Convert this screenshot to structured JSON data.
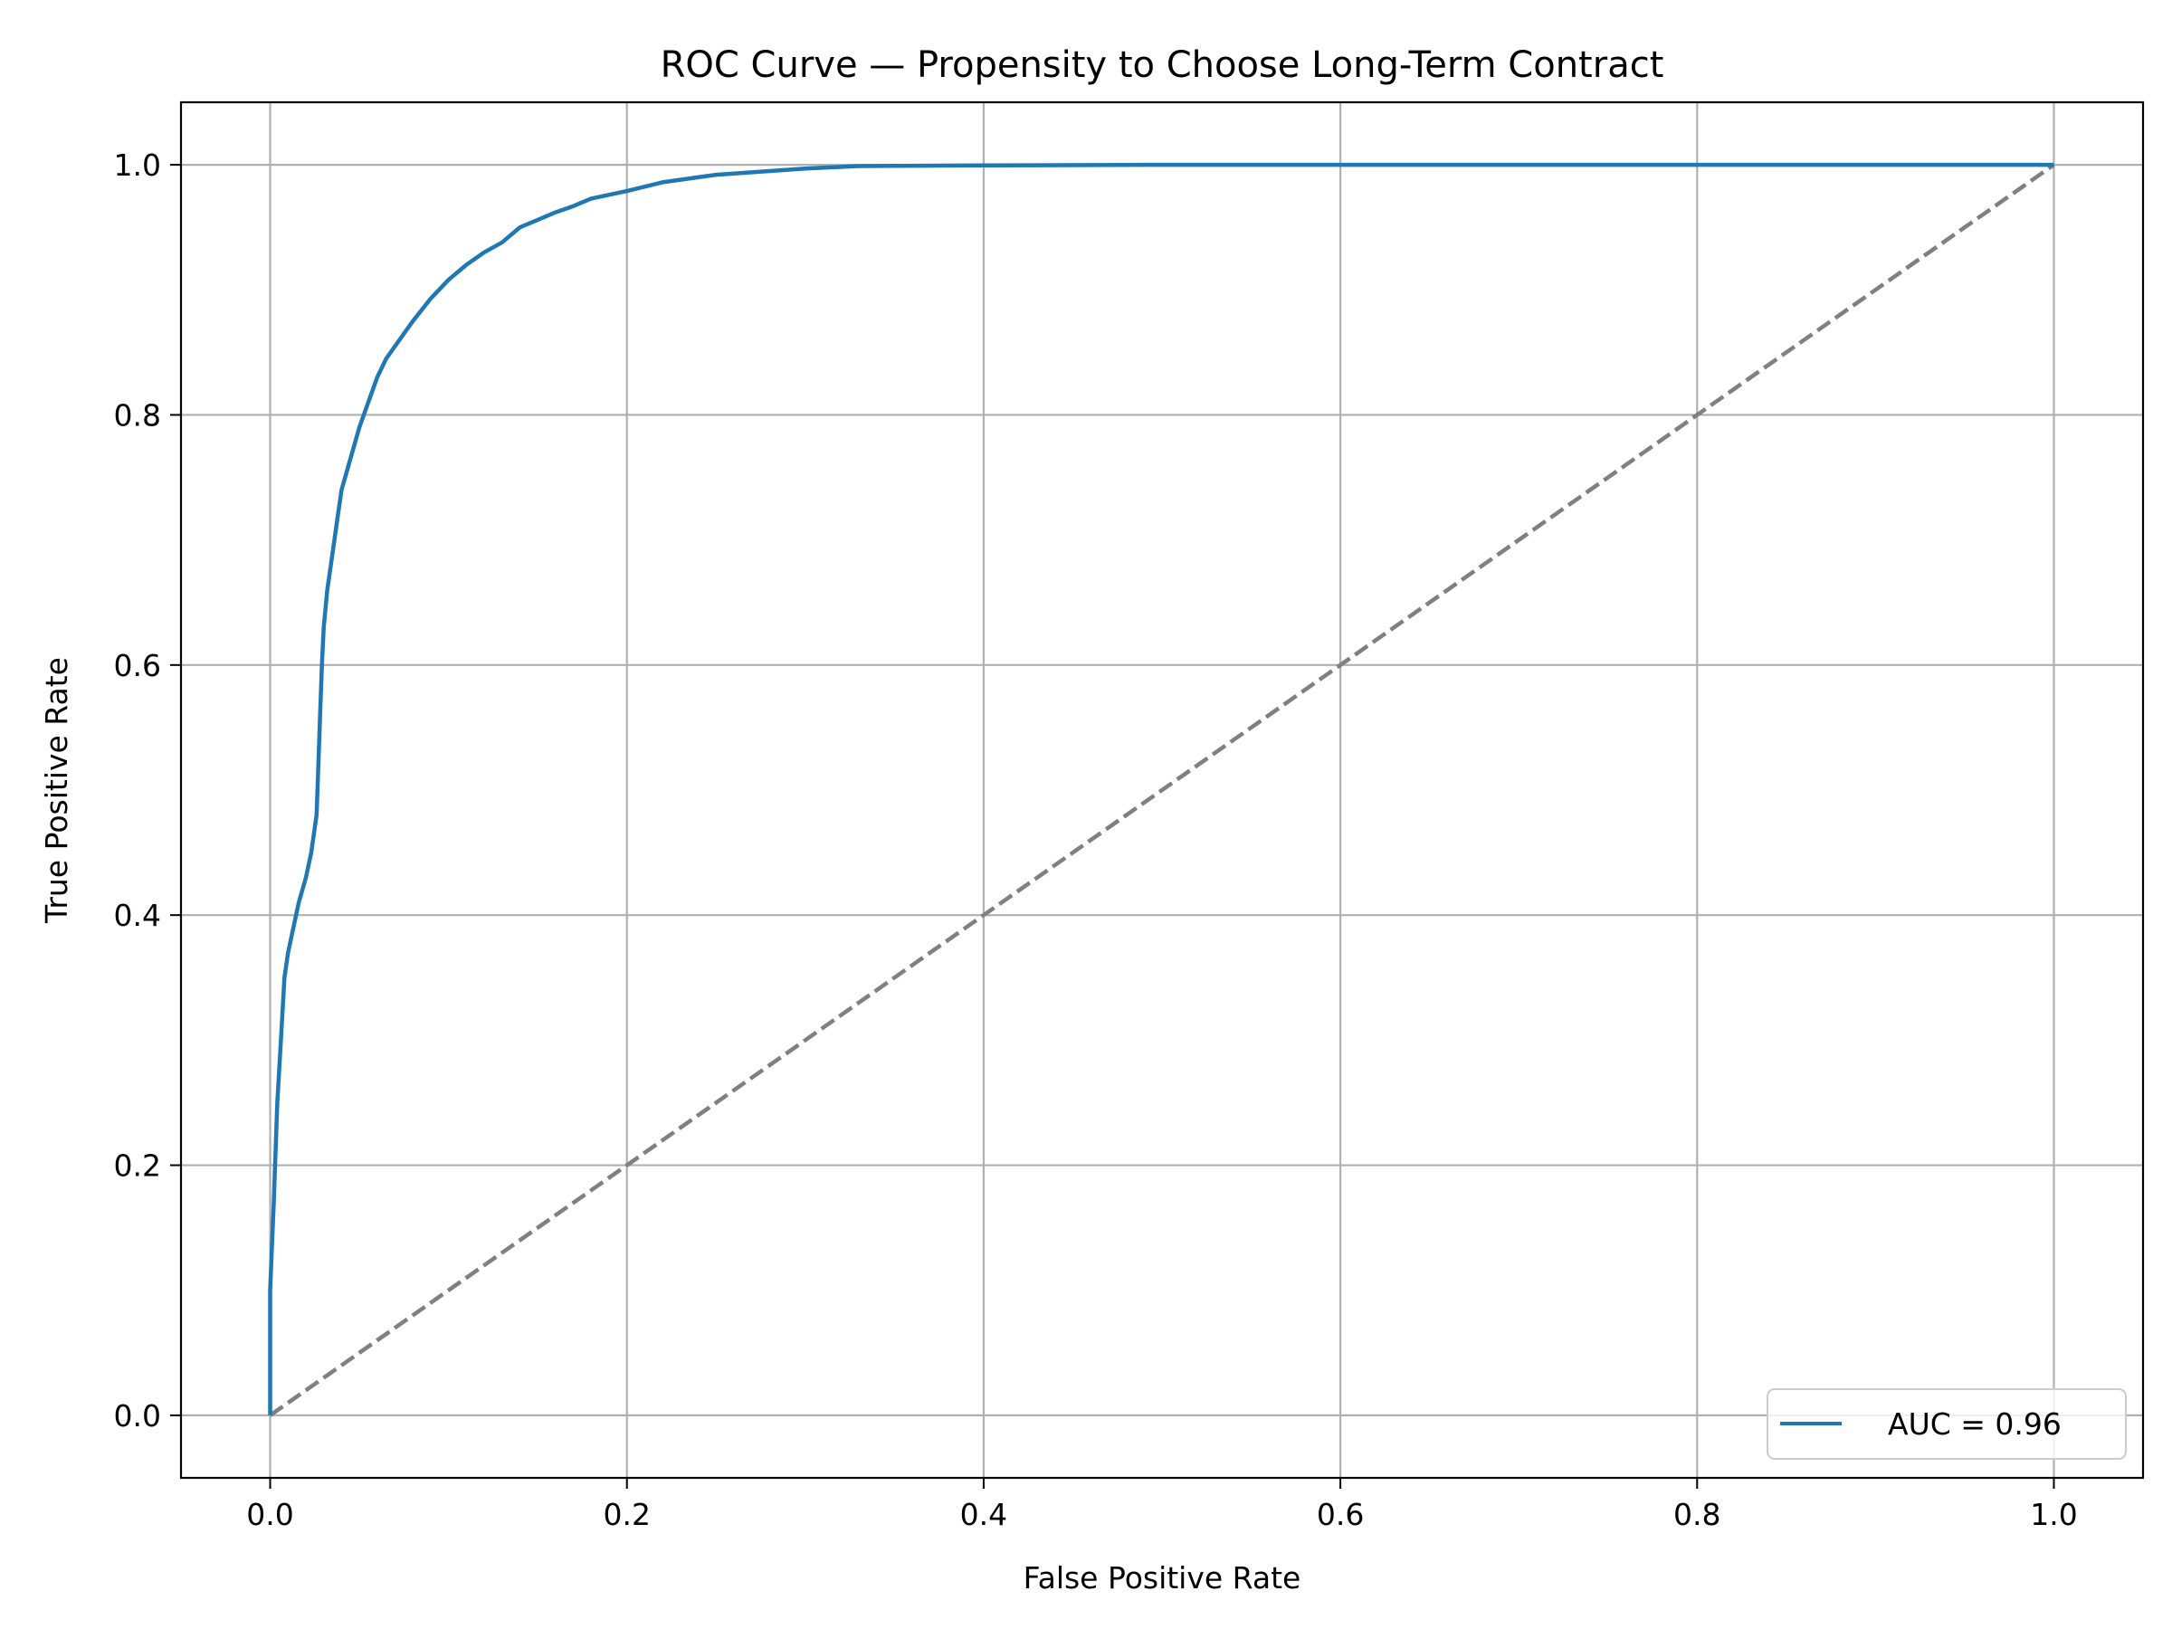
{
  "chart_data": {
    "type": "line",
    "title": "ROC Curve — Propensity to Choose Long-Term Contract",
    "xlabel": "False Positive Rate",
    "ylabel": "True Positive Rate",
    "xlim": [
      -0.05,
      1.05
    ],
    "ylim": [
      -0.05,
      1.05
    ],
    "x_ticks": [
      "0.0",
      "0.2",
      "0.4",
      "0.6",
      "0.8",
      "1.0"
    ],
    "y_ticks": [
      "0.0",
      "0.2",
      "0.4",
      "0.6",
      "0.8",
      "1.0"
    ],
    "x_tick_values": [
      0,
      0.2,
      0.4,
      0.6,
      0.8,
      1.0
    ],
    "y_tick_values": [
      0,
      0.2,
      0.4,
      0.6,
      0.8,
      1.0
    ],
    "grid": true,
    "legend_position": "lower right",
    "series": [
      {
        "name": "AUC = 0.96",
        "color": "#1f77b4",
        "style": "solid",
        "x": [
          0.0,
          0.0,
          0.002,
          0.004,
          0.006,
          0.008,
          0.01,
          0.013,
          0.016,
          0.02,
          0.023,
          0.026,
          0.027,
          0.028,
          0.029,
          0.03,
          0.032,
          0.034,
          0.036,
          0.038,
          0.04,
          0.043,
          0.046,
          0.05,
          0.055,
          0.06,
          0.065,
          0.07,
          0.075,
          0.08,
          0.09,
          0.1,
          0.11,
          0.12,
          0.13,
          0.14,
          0.15,
          0.16,
          0.17,
          0.18,
          0.2,
          0.22,
          0.25,
          0.28,
          0.3,
          0.33,
          0.4,
          0.5,
          0.6,
          0.7,
          0.8,
          0.9,
          1.0
        ],
        "y": [
          0.0,
          0.1,
          0.17,
          0.25,
          0.3,
          0.35,
          0.37,
          0.39,
          0.41,
          0.43,
          0.45,
          0.48,
          0.52,
          0.56,
          0.6,
          0.63,
          0.66,
          0.68,
          0.7,
          0.72,
          0.74,
          0.755,
          0.77,
          0.79,
          0.81,
          0.83,
          0.845,
          0.855,
          0.865,
          0.875,
          0.893,
          0.908,
          0.92,
          0.93,
          0.938,
          0.95,
          0.956,
          0.962,
          0.967,
          0.973,
          0.979,
          0.986,
          0.992,
          0.995,
          0.997,
          0.999,
          0.9995,
          1.0,
          1.0,
          1.0,
          1.0,
          1.0,
          1.0
        ]
      },
      {
        "name": "",
        "color": "#808080",
        "style": "dashed",
        "x": [
          0.0,
          1.0
        ],
        "y": [
          0.0,
          1.0
        ]
      }
    ]
  }
}
